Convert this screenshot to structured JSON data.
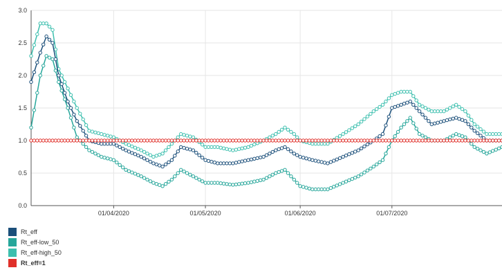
{
  "chart_data": {
    "type": "line",
    "x_start": "2020-03-05",
    "x_end": "2020-08-06",
    "x_ticks": [
      {
        "date": "2020-04-01",
        "label": "01/04/2020"
      },
      {
        "date": "2020-05-01",
        "label": "01/05/2020"
      },
      {
        "date": "2020-06-01",
        "label": "01/06/2020"
      },
      {
        "date": "2020-07-01",
        "label": "01/07/2020"
      }
    ],
    "ylim": [
      0,
      3.0
    ],
    "y_ticks": [
      "0.0",
      "0.5",
      "1.0",
      "1.5",
      "2.0",
      "2.5",
      "3.0"
    ],
    "grid": true,
    "legend_position": "bottom-left",
    "series": [
      {
        "name": "Rt_eff",
        "color": "#1b4f7a",
        "bold": false,
        "points": [
          [
            "2020-03-05",
            1.9
          ],
          [
            "2020-03-08",
            2.35
          ],
          [
            "2020-03-10",
            2.6
          ],
          [
            "2020-03-12",
            2.5
          ],
          [
            "2020-03-14",
            2.0
          ],
          [
            "2020-03-17",
            1.6
          ],
          [
            "2020-03-20",
            1.3
          ],
          [
            "2020-03-24",
            1.0
          ],
          [
            "2020-03-28",
            0.95
          ],
          [
            "2020-04-01",
            0.95
          ],
          [
            "2020-04-05",
            0.85
          ],
          [
            "2020-04-10",
            0.75
          ],
          [
            "2020-04-14",
            0.65
          ],
          [
            "2020-04-17",
            0.6
          ],
          [
            "2020-04-20",
            0.7
          ],
          [
            "2020-04-23",
            0.9
          ],
          [
            "2020-04-27",
            0.85
          ],
          [
            "2020-05-01",
            0.7
          ],
          [
            "2020-05-05",
            0.65
          ],
          [
            "2020-05-10",
            0.65
          ],
          [
            "2020-05-15",
            0.7
          ],
          [
            "2020-05-20",
            0.75
          ],
          [
            "2020-05-24",
            0.85
          ],
          [
            "2020-05-27",
            0.9
          ],
          [
            "2020-05-30",
            0.8
          ],
          [
            "2020-06-01",
            0.75
          ],
          [
            "2020-06-05",
            0.7
          ],
          [
            "2020-06-10",
            0.65
          ],
          [
            "2020-06-15",
            0.75
          ],
          [
            "2020-06-20",
            0.85
          ],
          [
            "2020-06-25",
            1.0
          ],
          [
            "2020-06-28",
            1.1
          ],
          [
            "2020-07-01",
            1.5
          ],
          [
            "2020-07-04",
            1.55
          ],
          [
            "2020-07-07",
            1.6
          ],
          [
            "2020-07-10",
            1.45
          ],
          [
            "2020-07-14",
            1.25
          ],
          [
            "2020-07-18",
            1.3
          ],
          [
            "2020-07-22",
            1.35
          ],
          [
            "2020-07-25",
            1.3
          ],
          [
            "2020-07-28",
            1.15
          ],
          [
            "2020-08-01",
            1.0
          ],
          [
            "2020-08-06",
            1.0
          ]
        ]
      },
      {
        "name": "Rt_eff-low_50",
        "color": "#26a69a",
        "bold": false,
        "points": [
          [
            "2020-03-05",
            1.2
          ],
          [
            "2020-03-08",
            2.0
          ],
          [
            "2020-03-10",
            2.3
          ],
          [
            "2020-03-12",
            2.25
          ],
          [
            "2020-03-14",
            1.9
          ],
          [
            "2020-03-17",
            1.5
          ],
          [
            "2020-03-20",
            1.05
          ],
          [
            "2020-03-24",
            0.85
          ],
          [
            "2020-03-28",
            0.75
          ],
          [
            "2020-04-01",
            0.7
          ],
          [
            "2020-04-05",
            0.55
          ],
          [
            "2020-04-10",
            0.45
          ],
          [
            "2020-04-14",
            0.35
          ],
          [
            "2020-04-17",
            0.3
          ],
          [
            "2020-04-20",
            0.4
          ],
          [
            "2020-04-23",
            0.55
          ],
          [
            "2020-04-27",
            0.45
          ],
          [
            "2020-05-01",
            0.35
          ],
          [
            "2020-05-05",
            0.35
          ],
          [
            "2020-05-10",
            0.32
          ],
          [
            "2020-05-15",
            0.35
          ],
          [
            "2020-05-20",
            0.4
          ],
          [
            "2020-05-24",
            0.5
          ],
          [
            "2020-05-27",
            0.55
          ],
          [
            "2020-05-30",
            0.4
          ],
          [
            "2020-06-01",
            0.3
          ],
          [
            "2020-06-05",
            0.25
          ],
          [
            "2020-06-10",
            0.25
          ],
          [
            "2020-06-15",
            0.35
          ],
          [
            "2020-06-20",
            0.45
          ],
          [
            "2020-06-25",
            0.6
          ],
          [
            "2020-06-28",
            0.7
          ],
          [
            "2020-07-01",
            1.0
          ],
          [
            "2020-07-04",
            1.2
          ],
          [
            "2020-07-07",
            1.35
          ],
          [
            "2020-07-10",
            1.1
          ],
          [
            "2020-07-14",
            1.0
          ],
          [
            "2020-07-18",
            1.0
          ],
          [
            "2020-07-22",
            1.1
          ],
          [
            "2020-07-25",
            1.05
          ],
          [
            "2020-07-28",
            0.9
          ],
          [
            "2020-08-01",
            0.8
          ],
          [
            "2020-08-06",
            0.9
          ]
        ]
      },
      {
        "name": "Rt_eff-high_50",
        "color": "#3cbfae",
        "bold": false,
        "points": [
          [
            "2020-03-05",
            2.3
          ],
          [
            "2020-03-08",
            2.8
          ],
          [
            "2020-03-10",
            2.8
          ],
          [
            "2020-03-12",
            2.7
          ],
          [
            "2020-03-14",
            2.1
          ],
          [
            "2020-03-17",
            1.8
          ],
          [
            "2020-03-20",
            1.5
          ],
          [
            "2020-03-24",
            1.15
          ],
          [
            "2020-03-28",
            1.1
          ],
          [
            "2020-04-01",
            1.05
          ],
          [
            "2020-04-05",
            0.95
          ],
          [
            "2020-04-10",
            0.85
          ],
          [
            "2020-04-14",
            0.75
          ],
          [
            "2020-04-17",
            0.8
          ],
          [
            "2020-04-20",
            0.95
          ],
          [
            "2020-04-23",
            1.1
          ],
          [
            "2020-04-27",
            1.05
          ],
          [
            "2020-05-01",
            0.9
          ],
          [
            "2020-05-05",
            0.9
          ],
          [
            "2020-05-10",
            0.85
          ],
          [
            "2020-05-15",
            0.9
          ],
          [
            "2020-05-20",
            1.0
          ],
          [
            "2020-05-24",
            1.1
          ],
          [
            "2020-05-27",
            1.2
          ],
          [
            "2020-05-30",
            1.1
          ],
          [
            "2020-06-01",
            1.0
          ],
          [
            "2020-06-05",
            0.95
          ],
          [
            "2020-06-10",
            0.95
          ],
          [
            "2020-06-15",
            1.1
          ],
          [
            "2020-06-20",
            1.25
          ],
          [
            "2020-06-25",
            1.45
          ],
          [
            "2020-06-28",
            1.55
          ],
          [
            "2020-07-01",
            1.7
          ],
          [
            "2020-07-04",
            1.75
          ],
          [
            "2020-07-07",
            1.75
          ],
          [
            "2020-07-10",
            1.55
          ],
          [
            "2020-07-14",
            1.45
          ],
          [
            "2020-07-18",
            1.45
          ],
          [
            "2020-07-22",
            1.55
          ],
          [
            "2020-07-25",
            1.45
          ],
          [
            "2020-07-28",
            1.25
          ],
          [
            "2020-08-01",
            1.1
          ],
          [
            "2020-08-06",
            1.1
          ]
        ]
      },
      {
        "name": "Rt_eff=1",
        "color": "#e0302a",
        "bold": true,
        "points": [
          [
            "2020-03-05",
            1.0
          ],
          [
            "2020-08-06",
            1.0
          ]
        ]
      }
    ]
  }
}
